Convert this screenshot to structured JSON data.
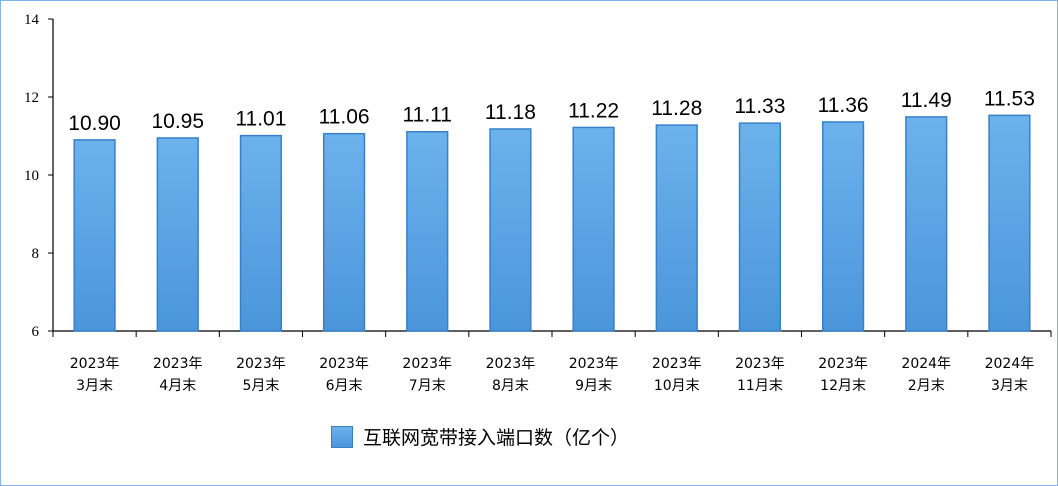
{
  "chart_data": {
    "type": "bar",
    "categories": [
      [
        "2023年",
        "3月末"
      ],
      [
        "2023年",
        "4月末"
      ],
      [
        "2023年",
        "5月末"
      ],
      [
        "2023年",
        "6月末"
      ],
      [
        "2023年",
        "7月末"
      ],
      [
        "2023年",
        "8月末"
      ],
      [
        "2023年",
        "9月末"
      ],
      [
        "2023年",
        "10月末"
      ],
      [
        "2023年",
        "11月末"
      ],
      [
        "2023年",
        "12月末"
      ],
      [
        "2024年",
        "2月末"
      ],
      [
        "2024年",
        "3月末"
      ]
    ],
    "values": [
      10.9,
      10.95,
      11.01,
      11.06,
      11.11,
      11.18,
      11.22,
      11.28,
      11.33,
      11.36,
      11.49,
      11.53
    ],
    "data_labels": [
      "10.90",
      "10.95",
      "11.01",
      "11.06",
      "11.11",
      "11.18",
      "11.22",
      "11.28",
      "11.33",
      "11.36",
      "11.49",
      "11.53"
    ],
    "ylim": [
      6,
      14
    ],
    "yticks": [
      6,
      8,
      10,
      12,
      14
    ],
    "grid": false,
    "legend": {
      "placement": "bottom",
      "label": "互联网宽带接入端口数（亿个）"
    },
    "bar_color": "#5aa3e6",
    "bar_border_color": "#3a80c6"
  }
}
